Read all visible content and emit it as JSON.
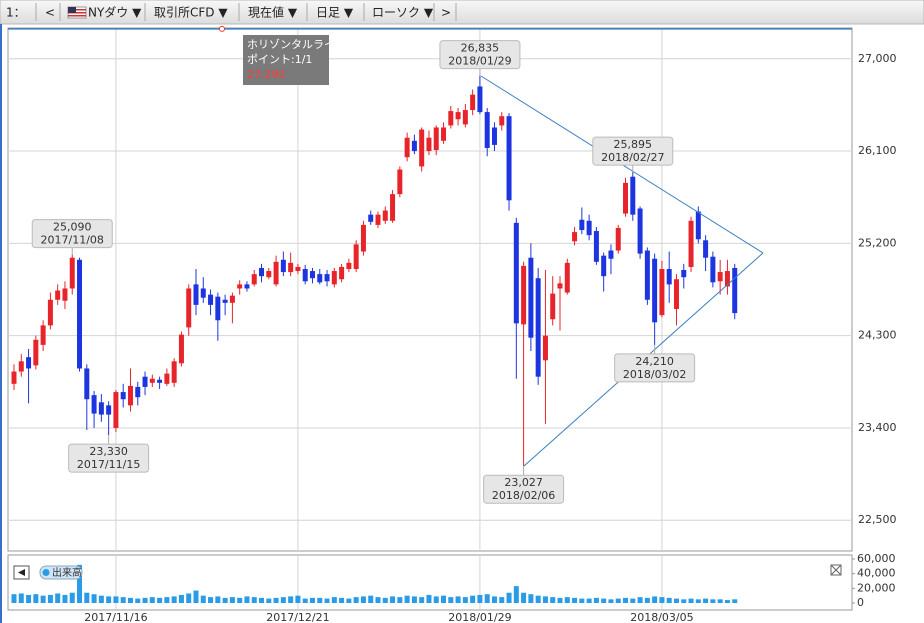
{
  "toolbar": {
    "index": "1：",
    "prev": "<",
    "symbol": "NYダウ ▼",
    "market": "取引所CFD ▼",
    "price": "現在値 ▼",
    "period": "日足 ▼",
    "style": "ローソク ▼",
    "next": ">"
  },
  "chart_data": {
    "type": "candlestick",
    "up_color": "#e8242b",
    "down_color": "#1c35e0",
    "grid": true,
    "categories": [
      null,
      null,
      null,
      null,
      null,
      null,
      null,
      null,
      null,
      null,
      null,
      null,
      null,
      null,
      "2017/11/16",
      null,
      null,
      null,
      null,
      null,
      null,
      null,
      null,
      null,
      null,
      null,
      null,
      null,
      null,
      null,
      null,
      null,
      null,
      null,
      null,
      null,
      null,
      null,
      null,
      "2017/12/21",
      null,
      null,
      null,
      null,
      null,
      null,
      null,
      null,
      null,
      null,
      null,
      null,
      null,
      null,
      null,
      null,
      null,
      null,
      null,
      null,
      null,
      null,
      null,
      null,
      "2018/01/29",
      null,
      null,
      null,
      null,
      null,
      null,
      null,
      null,
      null,
      null,
      null,
      null,
      null,
      null,
      null,
      null,
      null,
      null,
      null,
      null,
      null,
      null,
      null,
      null,
      "2018/03/05",
      null,
      null,
      null,
      null,
      null,
      null,
      null,
      null,
      null,
      null
    ],
    "open": [
      23830,
      23950,
      24090,
      24010,
      24210,
      24400,
      24650,
      24640,
      24760,
      25040,
      23980,
      23720,
      23650,
      23620,
      23400,
      23750,
      23620,
      23800,
      23900,
      23840,
      23870,
      23830,
      23840,
      24030,
      24380,
      24800,
      24760,
      24700,
      24680,
      24650,
      24620,
      24760,
      24800,
      24800,
      24960,
      24870,
      24800,
      25040,
      24920,
      24930,
      24950,
      24930,
      24900,
      24900,
      24800,
      24850,
      24950,
      24950,
      25120,
      25480,
      25380,
      25420,
      25420,
      25680,
      26040,
      26200,
      25950,
      26100,
      26110,
      26200,
      26350,
      26410,
      26360,
      26500,
      26730,
      26480,
      26330,
      26350,
      26440,
      25400,
      24410,
      25060,
      24860,
      24060,
      24460,
      24760,
      24720,
      25220,
      25430,
      25420,
      25320,
      25080,
      25130,
      25130,
      25490,
      25850,
      25540,
      25130,
      25050,
      24500,
      24950,
      24560,
      24940,
      24970,
      25510,
      25230,
      25070,
      24830,
      24780,
      24960
    ],
    "close": [
      23950,
      24050,
      23980,
      24260,
      24400,
      24650,
      24740,
      24760,
      25060,
      23980,
      23680,
      23540,
      23530,
      23530,
      23750,
      23680,
      23810,
      23700,
      23800,
      23880,
      23840,
      23930,
      24050,
      24310,
      24760,
      24600,
      24670,
      24600,
      24450,
      24620,
      24690,
      24800,
      24760,
      24900,
      24880,
      24930,
      25020,
      24920,
      25010,
      24970,
      24830,
      24860,
      24820,
      24830,
      24930,
      24970,
      25010,
      25190,
      25380,
      25410,
      25480,
      25520,
      25680,
      25920,
      26230,
      26100,
      26310,
      26230,
      26330,
      26330,
      26490,
      26480,
      26500,
      26650,
      26480,
      26130,
      26160,
      26440,
      25620,
      24420,
      24980,
      24280,
      23900,
      24300,
      24710,
      24810,
      25010,
      25310,
      25330,
      25280,
      25020,
      24880,
      25050,
      25350,
      25790,
      25480,
      25100,
      24650,
      24430,
      24950,
      24800,
      24850,
      24870,
      25420,
      25240,
      25060,
      24820,
      24920,
      24930,
      24520
    ],
    "high": [
      24020,
      24120,
      24170,
      24300,
      24450,
      24720,
      24800,
      24830,
      25090,
      25060,
      24020,
      23760,
      23730,
      23660,
      23770,
      23830,
      23980,
      23850,
      23950,
      23920,
      23900,
      23980,
      24080,
      24340,
      24800,
      24950,
      24870,
      24750,
      24720,
      24700,
      24720,
      24840,
      24830,
      24940,
      25000,
      24960,
      25080,
      25120,
      25110,
      25000,
      24990,
      24960,
      24950,
      24940,
      24960,
      25000,
      25050,
      25230,
      25420,
      25520,
      25510,
      25560,
      25720,
      25950,
      26280,
      26260,
      26330,
      26300,
      26350,
      26380,
      26540,
      26520,
      26560,
      26700,
      26835,
      26520,
      26380,
      26480,
      26470,
      25450,
      25020,
      25200,
      24960,
      24940,
      24880,
      24880,
      25050,
      25360,
      25550,
      25480,
      25360,
      25110,
      25190,
      25380,
      25840,
      25895,
      25560,
      25160,
      25100,
      25030,
      25120,
      24900,
      25000,
      25460,
      25560,
      25280,
      25120,
      25040,
      25040,
      25000
    ],
    "low": [
      23770,
      23900,
      23640,
      23970,
      24150,
      24360,
      24600,
      24560,
      24700,
      23950,
      23380,
      23400,
      23460,
      23330,
      23360,
      23600,
      23560,
      23620,
      23720,
      23800,
      23780,
      23810,
      23800,
      24000,
      24300,
      24500,
      24620,
      24500,
      24250,
      24500,
      24420,
      24700,
      24730,
      24780,
      24820,
      24850,
      24780,
      24880,
      24880,
      24900,
      24800,
      24810,
      24800,
      24780,
      24770,
      24820,
      24920,
      24920,
      25080,
      25380,
      25350,
      25390,
      25400,
      25650,
      26000,
      26070,
      25900,
      26060,
      26060,
      26170,
      26320,
      26350,
      26330,
      26450,
      26460,
      26050,
      26100,
      26300,
      25520,
      23880,
      23027,
      24150,
      23820,
      23440,
      24400,
      24350,
      24700,
      25180,
      25290,
      25230,
      24990,
      24730,
      24900,
      25100,
      25460,
      25420,
      25050,
      24600,
      24210,
      24480,
      24620,
      24400,
      24760,
      24920,
      25200,
      24930,
      24770,
      24700,
      24700,
      24460
    ],
    "ylim": [
      22200,
      27300
    ],
    "yticks": [
      {
        "value": 22500,
        "label": "22,500"
      },
      {
        "value": 23400,
        "label": "23,400"
      },
      {
        "value": 24300,
        "label": "24,300"
      },
      {
        "value": 25200,
        "label": "25,200"
      },
      {
        "value": 26100,
        "label": "26,100"
      },
      {
        "value": 27000,
        "label": "27,000"
      }
    ],
    "callouts": [
      {
        "value": 25090,
        "label": "25,090",
        "date": "2017/11/08"
      },
      {
        "value": 23330,
        "label": "23,330",
        "date": "2017/11/15"
      },
      {
        "value": 26835,
        "label": "26,835",
        "date": "2018/01/29"
      },
      {
        "value": 23027,
        "label": "23,027",
        "date": "2018/02/06"
      },
      {
        "value": 25895,
        "label": "25,895",
        "date": "2018/02/27"
      },
      {
        "value": 24210,
        "label": "24,210",
        "date": "2018/03/02"
      }
    ],
    "horizontal_line": {
      "name": "ホリゾンタルライン",
      "point": "ポイント:1/1",
      "value": 27292,
      "label": "27,292",
      "color": "#3a7fc1"
    },
    "volume": {
      "label": "出来高",
      "color": "#2a9be6",
      "values": [
        12000,
        13000,
        11000,
        12000,
        10000,
        11000,
        13000,
        11000,
        14000,
        52000,
        14000,
        12000,
        10000,
        9000,
        9000,
        8000,
        7000,
        6000,
        7000,
        8000,
        7000,
        8000,
        9000,
        11000,
        13000,
        17000,
        10000,
        8000,
        9000,
        7000,
        8000,
        7000,
        9000,
        8000,
        7000,
        6000,
        7000,
        8000,
        9000,
        10000,
        6000,
        7000,
        7000,
        6000,
        8000,
        7000,
        6000,
        8000,
        9000,
        10000,
        8000,
        7000,
        9000,
        8000,
        10000,
        9000,
        8000,
        11000,
        9000,
        10000,
        8000,
        9000,
        8000,
        10000,
        11000,
        12000,
        9000,
        8000,
        14000,
        23000,
        14000,
        12000,
        10000,
        9000,
        8000,
        7000,
        8000,
        7000,
        6000,
        6000,
        7000,
        6000,
        5000,
        6000,
        7000,
        6000,
        8000,
        7000,
        9000,
        8000,
        7000,
        6000,
        5000,
        6000,
        5000,
        6000,
        5000,
        5000,
        4000,
        5000
      ],
      "ylim": [
        0,
        60000
      ],
      "yticks": [
        0,
        {
          "value": 20000,
          "label": "20,000"
        },
        {
          "value": 40000,
          "label": "40,000"
        },
        {
          "value": 60000,
          "label": "60,000"
        }
      ]
    }
  }
}
